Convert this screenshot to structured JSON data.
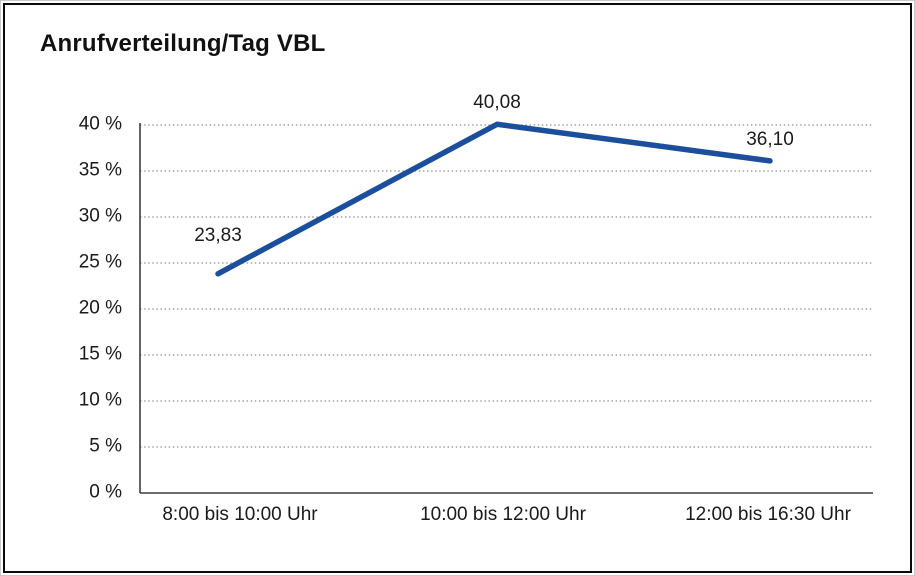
{
  "chart_data": {
    "type": "line",
    "title": "Anrufverteilung/Tag VBL",
    "categories": [
      "8:00 bis 10:00 Uhr",
      "10:00 bis 12:00 Uhr",
      "12:00 bis 16:30 Uhr"
    ],
    "values": [
      23.83,
      40.08,
      36.1
    ],
    "value_labels": [
      "23,83",
      "40,08",
      "36,10"
    ],
    "ytick_labels": [
      "0 %",
      "5 %",
      "10 %",
      "15 %",
      "20 %",
      "25 %",
      "30 %",
      "35 %",
      "40 %"
    ],
    "ytick_step": 5,
    "ylim": [
      0,
      40
    ],
    "xlabel": "",
    "ylabel": "",
    "grid": "horizontal-dotted",
    "legend": "none",
    "line_color": "#1b4f9c",
    "grid_color": "#8f8f8f",
    "axis_color": "#3d3d3d",
    "text_color": "#1a1a1a"
  }
}
